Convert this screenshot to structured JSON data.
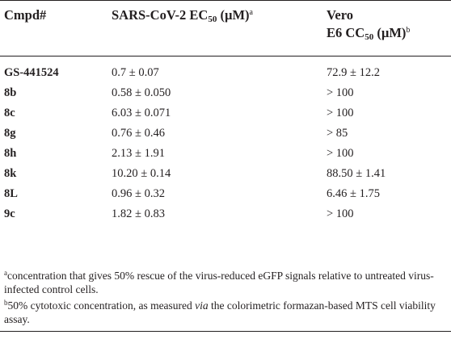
{
  "table": {
    "headers": {
      "compound": "Cmpd#",
      "ec50_main": "SARS-CoV-2 EC",
      "ec50_sub": "50",
      "ec50_unit": " (µM)",
      "ec50_mark": "a",
      "cc50_line1": "Vero",
      "cc50_main": "E6 CC",
      "cc50_sub": "50",
      "cc50_unit": " (µM)",
      "cc50_mark": "b"
    },
    "rows": [
      {
        "compound": "GS-441524",
        "ec50": "0.7 ± 0.07",
        "cc50": "72.9 ± 12.2"
      },
      {
        "compound": "8b",
        "ec50": "0.58 ± 0.050",
        "cc50": "> 100"
      },
      {
        "compound": "8c",
        "ec50": "6.03 ± 0.071",
        "cc50": "> 100"
      },
      {
        "compound": "8g",
        "ec50": "0.76 ± 0.46",
        "cc50": "> 85"
      },
      {
        "compound": "8h",
        "ec50": "2.13 ± 1.91",
        "cc50": "> 100"
      },
      {
        "compound": "8k",
        "ec50": "10.20 ± 0.14",
        "cc50": "88.50 ± 1.41"
      },
      {
        "compound": "8L",
        "ec50": "0.96 ± 0.32",
        "cc50": "6.46 ± 1.75"
      },
      {
        "compound": "9c",
        "ec50": "1.82 ± 0.83",
        "cc50": "> 100"
      }
    ]
  },
  "footnotes": {
    "a_mark": "a",
    "a_text": "concentration that gives 50% rescue of the virus-reduced eGFP signals relative to untreated virus-infected control cells.",
    "b_mark": "b",
    "b_text_1": "50% cytotoxic concentration, as measured ",
    "b_text_italic": "via",
    "b_text_2": " the colorimetric formazan-based MTS cell viability assay."
  }
}
